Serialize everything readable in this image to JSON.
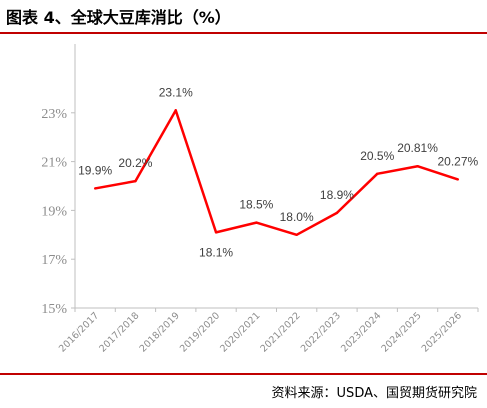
{
  "header": {
    "title": "图表 4、全球大豆库消比（%）"
  },
  "chart_data": {
    "type": "line",
    "title": "",
    "xlabel": "",
    "ylabel": "",
    "categories": [
      "2016/2017",
      "2017/2018",
      "2018/2019",
      "2019/2020",
      "2020/2021",
      "2021/2022",
      "2022/2023",
      "2023/2024",
      "2024/2025",
      "2025/2026"
    ],
    "series": [
      {
        "values": [
          19.9,
          20.2,
          23.1,
          18.1,
          18.5,
          18.0,
          18.9,
          20.5,
          20.81,
          20.27
        ],
        "labels": [
          "19.9%",
          "20.2%",
          "23.1%",
          "18.1%",
          "18.5%",
          "18.0%",
          "18.9%",
          "20.5%",
          "20.81%",
          "20.27%"
        ],
        "color": "#ff0000"
      }
    ],
    "ylim": [
      15,
      25
    ],
    "yticks": [
      15,
      17,
      19,
      21,
      23
    ],
    "ytick_labels": [
      "15%",
      "17%",
      "19%",
      "21%",
      "23%"
    ],
    "grid": false,
    "legend": "none"
  },
  "footer": {
    "source": "资料来源：USDA、国贸期货研究院"
  },
  "colors": {
    "accent": "#c00000",
    "line": "#ff0000",
    "axis": "#bfbfbf",
    "tick_text": "#8c8c8c"
  }
}
